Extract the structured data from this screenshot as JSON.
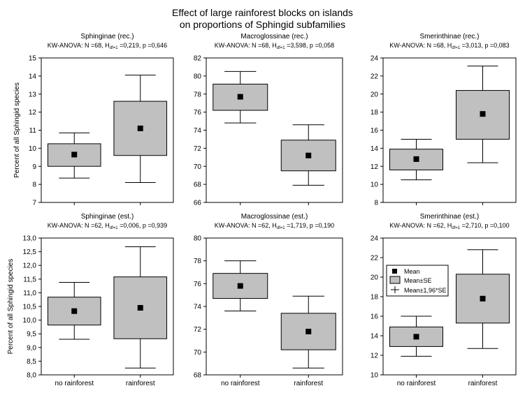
{
  "figure": {
    "title_line1": "Effect of large rainforest blocks on islands",
    "title_line2": "on proportions of Sphingid subfamilies",
    "ylabel": "Percent of all Sphingid species",
    "categories": [
      "no rainforest",
      "rainforest"
    ]
  },
  "legend": {
    "mean": "Mean",
    "se": "Mean±SE",
    "ci": "Mean±1,96*SE"
  },
  "colors": {
    "box_fill": "#c0c0c0",
    "stroke": "#000000",
    "background": "#ffffff"
  },
  "chart_data": [
    {
      "type": "box",
      "title": "Sphinginae (rec.)",
      "subtitle": "KW-ANOVA: N =68, H",
      "subtitle_sub": "df=1",
      "subtitle_rest": " =0,219, p =0,646",
      "categories": [
        "no rainforest",
        "rainforest"
      ],
      "ylim": [
        7,
        15
      ],
      "yticks": [
        "7",
        "8",
        "9",
        "10",
        "11",
        "12",
        "13",
        "14",
        "15"
      ],
      "series": [
        {
          "category": "no rainforest",
          "mean": 9.65,
          "se_low": 9.0,
          "se_high": 10.25,
          "ci_low": 8.35,
          "ci_high": 10.85
        },
        {
          "category": "rainforest",
          "mean": 11.1,
          "se_low": 9.6,
          "se_high": 12.6,
          "ci_low": 8.1,
          "ci_high": 14.05
        }
      ]
    },
    {
      "type": "box",
      "title": "Macroglossinae (rec.)",
      "subtitle": "KW-ANOVA: N =68, H",
      "subtitle_sub": "df=1",
      "subtitle_rest": " =3,598, p =0,058",
      "categories": [
        "no rainforest",
        "rainforest"
      ],
      "ylim": [
        66,
        82
      ],
      "yticks": [
        "66",
        "68",
        "70",
        "72",
        "74",
        "76",
        "78",
        "80",
        "82"
      ],
      "series": [
        {
          "category": "no rainforest",
          "mean": 77.7,
          "se_low": 76.2,
          "se_high": 79.1,
          "ci_low": 74.8,
          "ci_high": 80.5
        },
        {
          "category": "rainforest",
          "mean": 71.2,
          "se_low": 69.5,
          "se_high": 72.9,
          "ci_low": 67.9,
          "ci_high": 74.6
        }
      ]
    },
    {
      "type": "box",
      "title": "Smerinthinae (rec.)",
      "subtitle": "KW-ANOVA: N =68, H",
      "subtitle_sub": "df=1",
      "subtitle_rest": " =3,013, p =0,083",
      "categories": [
        "no rainforest",
        "rainforest"
      ],
      "ylim": [
        8,
        24
      ],
      "yticks": [
        "8",
        "10",
        "12",
        "14",
        "16",
        "18",
        "20",
        "22",
        "24"
      ],
      "series": [
        {
          "category": "no rainforest",
          "mean": 12.8,
          "se_low": 11.6,
          "se_high": 13.9,
          "ci_low": 10.5,
          "ci_high": 15.0
        },
        {
          "category": "rainforest",
          "mean": 17.8,
          "se_low": 15.0,
          "se_high": 20.4,
          "ci_low": 12.4,
          "ci_high": 23.1
        }
      ]
    },
    {
      "type": "box",
      "title": "Sphinginae (est.)",
      "subtitle": "KW-ANOVA: N =62, H",
      "subtitle_sub": "df=1",
      "subtitle_rest": " =0,006, p =0,939",
      "categories": [
        "no rainforest",
        "rainforest"
      ],
      "ylim": [
        8.0,
        13.0
      ],
      "yticks": [
        "8,0",
        "8,5",
        "9,0",
        "9,5",
        "10,0",
        "10,5",
        "11,0",
        "11,5",
        "12,0",
        "12,5",
        "13,0"
      ],
      "series": [
        {
          "category": "no rainforest",
          "mean": 10.33,
          "se_low": 9.82,
          "se_high": 10.84,
          "ci_low": 9.3,
          "ci_high": 11.38
        },
        {
          "category": "rainforest",
          "mean": 10.45,
          "se_low": 9.32,
          "se_high": 11.58,
          "ci_low": 8.25,
          "ci_high": 12.68
        }
      ]
    },
    {
      "type": "box",
      "title": "Macroglossinae (est.)",
      "subtitle": "KW-ANOVA: N =62, H",
      "subtitle_sub": "df=1",
      "subtitle_rest": " =1,719, p =0,190",
      "categories": [
        "no rainforest",
        "rainforest"
      ],
      "ylim": [
        68,
        80
      ],
      "yticks": [
        "68",
        "70",
        "72",
        "74",
        "76",
        "78",
        "80"
      ],
      "series": [
        {
          "category": "no rainforest",
          "mean": 75.8,
          "se_low": 74.7,
          "se_high": 76.9,
          "ci_low": 73.6,
          "ci_high": 78.0
        },
        {
          "category": "rainforest",
          "mean": 71.8,
          "se_low": 70.2,
          "se_high": 73.4,
          "ci_low": 68.6,
          "ci_high": 74.9
        }
      ]
    },
    {
      "type": "box",
      "title": "Smerinthinae (est.)",
      "subtitle": "KW-ANOVA: N =62, H",
      "subtitle_sub": "df=1",
      "subtitle_rest": " =2,710, p =0,100",
      "categories": [
        "no rainforest",
        "rainforest"
      ],
      "ylim": [
        10,
        24
      ],
      "yticks": [
        "10",
        "12",
        "14",
        "16",
        "18",
        "20",
        "22",
        "24"
      ],
      "series": [
        {
          "category": "no rainforest",
          "mean": 13.9,
          "se_low": 12.9,
          "se_high": 14.9,
          "ci_low": 11.9,
          "ci_high": 16.0
        },
        {
          "category": "rainforest",
          "mean": 17.8,
          "se_low": 15.3,
          "se_high": 20.3,
          "ci_low": 12.7,
          "ci_high": 22.8
        }
      ]
    }
  ]
}
